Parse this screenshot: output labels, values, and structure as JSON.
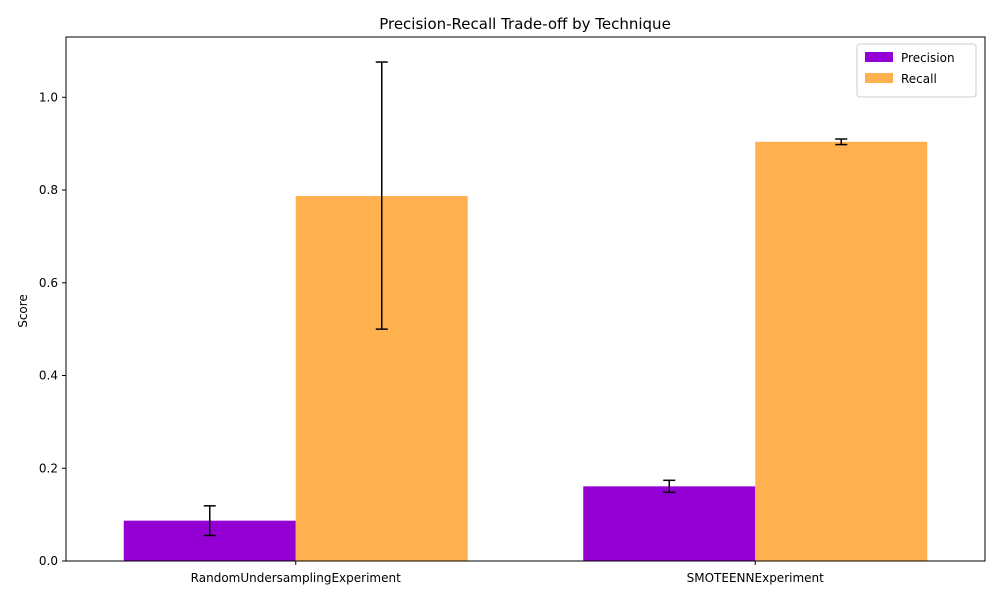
{
  "chart_data": {
    "type": "bar",
    "title": "Precision-Recall Trade-off by Technique",
    "xlabel": "",
    "ylabel": "Score",
    "categories": [
      "RandomUndersamplingExperiment",
      "SMOTEENNExperiment"
    ],
    "series": [
      {
        "name": "Precision",
        "color": "#9400D3",
        "values": [
          0.087,
          0.161
        ],
        "error": [
          [
            0.032,
            0.032
          ],
          [
            0.013,
            0.013
          ]
        ]
      },
      {
        "name": "Recall",
        "color": "#FFB04F",
        "values": [
          0.787,
          0.904
        ],
        "error": [
          [
            0.287,
            0.289
          ],
          [
            0.006,
            0.006
          ]
        ]
      }
    ],
    "ylim": [
      0,
      1.13
    ],
    "yticks": [
      0.0,
      0.2,
      0.4,
      0.6,
      0.8,
      1.0
    ],
    "ytick_labels": [
      "0.0",
      "0.2",
      "0.4",
      "0.6",
      "0.8",
      "1.0"
    ],
    "grid": false,
    "legend_position": "top-right"
  }
}
